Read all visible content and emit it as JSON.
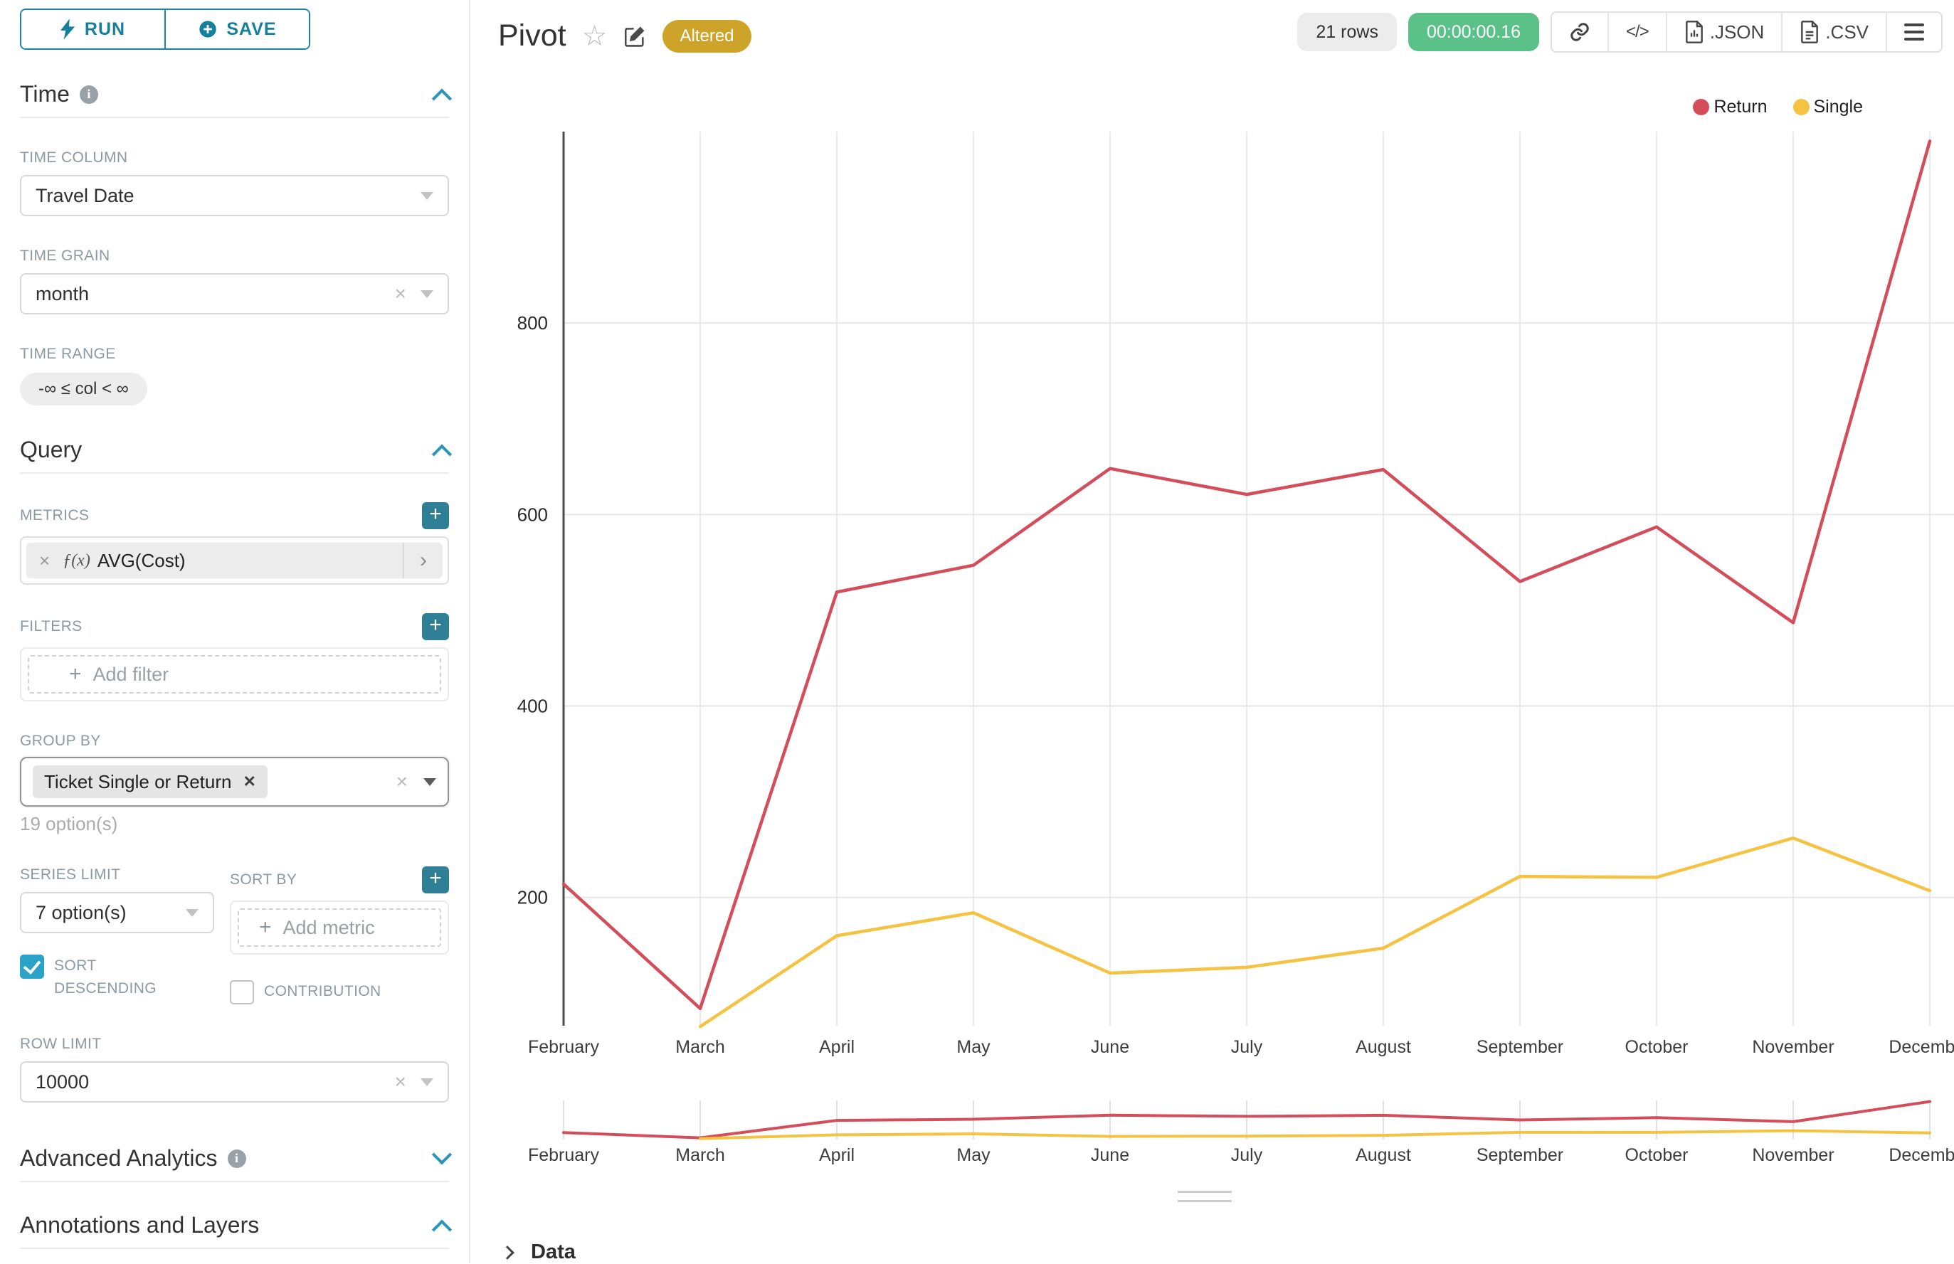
{
  "sidebar": {
    "run_label": "RUN",
    "save_label": "SAVE",
    "time_title": "Time",
    "time_column_label": "TIME COLUMN",
    "time_column_value": "Travel Date",
    "time_grain_label": "TIME GRAIN",
    "time_grain_value": "month",
    "time_range_label": "TIME RANGE",
    "time_range_value": "-∞ ≤ col < ∞",
    "query_title": "Query",
    "metrics_label": "METRICS",
    "metric_fx": "ƒ(x)",
    "metric_value": "AVG(Cost)",
    "filters_label": "FILTERS",
    "add_filter_label": "Add filter",
    "group_by_label": "GROUP BY",
    "group_by_tag": "Ticket Single or Return",
    "group_by_hint": "19 option(s)",
    "series_limit_label": "SERIES LIMIT",
    "series_limit_value": "7 option(s)",
    "sort_by_label": "SORT BY",
    "add_metric_label": "Add metric",
    "sort_descending_label": "SORT DESCENDING",
    "contribution_label": "CONTRIBUTION",
    "row_limit_label": "ROW LIMIT",
    "row_limit_value": "10000",
    "advanced_analytics_title": "Advanced Analytics",
    "annotations_title": "Annotations and Layers"
  },
  "header": {
    "title": "Pivot",
    "altered_badge": "Altered",
    "rows_badge": "21 rows",
    "timer": "00:00:00.16",
    "code_label": "</>",
    "json_label": ".JSON",
    "csv_label": ".CSV"
  },
  "footer": {
    "data_label": "Data"
  },
  "chart_data": {
    "type": "line",
    "categories": [
      "February",
      "March",
      "April",
      "May",
      "June",
      "July",
      "August",
      "September",
      "October",
      "November",
      "December"
    ],
    "series": [
      {
        "name": "Return",
        "color": "#d34d5a",
        "values": [
          214,
          84,
          519,
          547,
          648,
          621,
          647,
          530,
          587,
          487,
          990
        ]
      },
      {
        "name": "Single",
        "color": "#f5c242",
        "values": [
          null,
          65,
          160,
          184,
          121,
          127,
          147,
          222,
          221,
          262,
          207
        ]
      }
    ],
    "y_ticks": [
      200,
      400,
      600,
      800
    ],
    "y_domain": [
      66,
      1000
    ],
    "grid": true,
    "legend_position": "top-right",
    "has_minimap": true
  }
}
